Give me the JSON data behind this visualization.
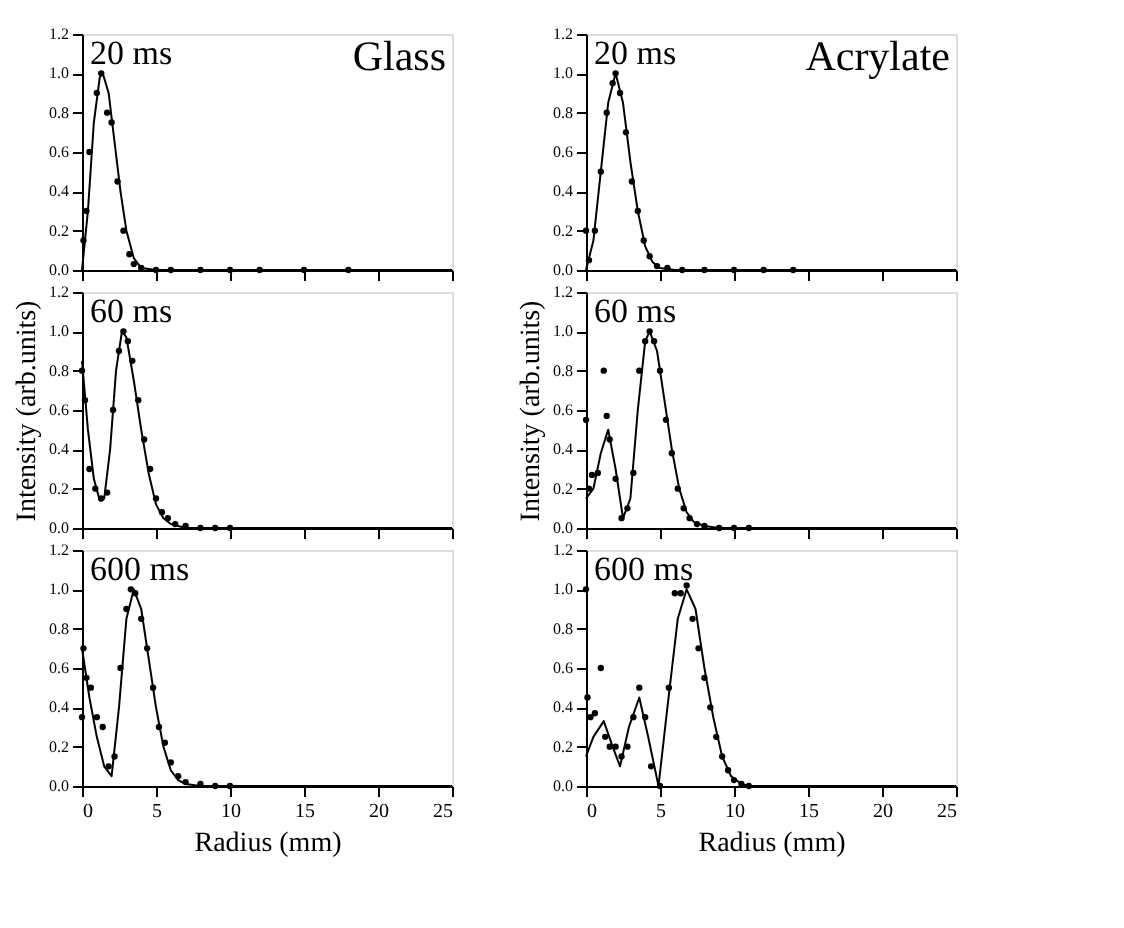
{
  "chart_data": [
    {
      "type": "line",
      "title": "20 ms",
      "annotations": [
        "Glass"
      ],
      "xlim": [
        0,
        25
      ],
      "xticks": [
        0,
        5,
        10,
        15,
        20,
        25
      ],
      "ylim": [
        0,
        1.2
      ],
      "yticks": [
        {
          "value": 0,
          "label": "0.0"
        },
        {
          "value": 0.2,
          "label": "0.2"
        },
        {
          "value": 0.4,
          "label": "0.4"
        },
        {
          "value": 0.6,
          "label": "0.6"
        },
        {
          "value": 0.8,
          "label": "0.8"
        },
        {
          "value": 1,
          "label": "1.0"
        },
        {
          "value": 1.2,
          "label": "1.2"
        }
      ],
      "tick_labels": "y",
      "grid": false,
      "series": [
        {
          "type": "line",
          "color": "#000000",
          "line_style": "solid",
          "x": [
            0,
            0.4,
            0.8,
            1.2,
            1.4,
            1.8,
            2.2,
            2.6,
            3.0,
            3.5,
            4,
            5,
            25
          ],
          "values": [
            0,
            0.3,
            0.75,
            0.98,
            1.0,
            0.9,
            0.65,
            0.4,
            0.2,
            0.06,
            0.01,
            0,
            0
          ]
        },
        {
          "type": "scatter",
          "color": "#000000",
          "marker": "circle",
          "x": [
            0.1,
            0.3,
            0.5,
            1.0,
            1.3,
            1.7,
            2.0,
            2.4,
            2.8,
            3.2,
            3.5,
            4,
            5,
            6,
            8,
            10,
            12,
            15,
            18
          ],
          "values": [
            0.15,
            0.3,
            0.6,
            0.9,
            1.0,
            0.8,
            0.75,
            0.45,
            0.2,
            0.08,
            0.03,
            0.01,
            0,
            0,
            0,
            0,
            0,
            0,
            0
          ]
        }
      ]
    },
    {
      "type": "line",
      "title": "20 ms",
      "annotations": [
        "Acrylate"
      ],
      "xlim": [
        0,
        25
      ],
      "xticks": [
        0,
        5,
        10,
        15,
        20,
        25
      ],
      "ylim": [
        0,
        1.2
      ],
      "yticks": [
        {
          "value": 0,
          "label": "0.0"
        },
        {
          "value": 0.2,
          "label": "0.2"
        },
        {
          "value": 0.4,
          "label": "0.4"
        },
        {
          "value": 0.6,
          "label": "0.6"
        },
        {
          "value": 0.8,
          "label": "0.8"
        },
        {
          "value": 1,
          "label": "1.0"
        },
        {
          "value": 1.2,
          "label": "1.2"
        }
      ],
      "tick_labels": "y",
      "grid": false,
      "series": [
        {
          "type": "line",
          "color": "#000000",
          "line_style": "solid",
          "x": [
            0,
            0.5,
            1,
            1.5,
            2,
            2.5,
            3,
            3.5,
            4,
            4.5,
            5,
            6,
            25
          ],
          "values": [
            0,
            0.15,
            0.5,
            0.85,
            1.0,
            0.85,
            0.55,
            0.3,
            0.12,
            0.04,
            0.01,
            0,
            0
          ]
        },
        {
          "type": "scatter",
          "color": "#000000",
          "marker": "circle",
          "x": [
            0,
            0.2,
            0.6,
            1.0,
            1.4,
            1.8,
            2.0,
            2.3,
            2.7,
            3.1,
            3.5,
            3.9,
            4.3,
            4.8,
            5.5,
            6.5,
            8,
            10,
            12,
            14
          ],
          "values": [
            0.2,
            0.05,
            0.2,
            0.5,
            0.8,
            0.95,
            1.0,
            0.9,
            0.7,
            0.45,
            0.3,
            0.15,
            0.07,
            0.02,
            0.01,
            0,
            0,
            0,
            0,
            0
          ]
        }
      ]
    },
    {
      "type": "line",
      "title": "60 ms",
      "ylabel": "Intensity (arb.units)",
      "xlim": [
        0,
        25
      ],
      "xticks": [
        0,
        5,
        10,
        15,
        20,
        25
      ],
      "ylim": [
        0,
        1.2
      ],
      "yticks": [
        {
          "value": 0,
          "label": "0.0"
        },
        {
          "value": 0.2,
          "label": "0.2"
        },
        {
          "value": 0.4,
          "label": "0.4"
        },
        {
          "value": 0.6,
          "label": "0.6"
        },
        {
          "value": 0.8,
          "label": "0.8"
        },
        {
          "value": 1,
          "label": "1.0"
        },
        {
          "value": 1.2,
          "label": "1.2"
        }
      ],
      "tick_labels": "y",
      "grid": false,
      "series": [
        {
          "type": "line",
          "color": "#000000",
          "line_style": "solid",
          "x": [
            0,
            0.4,
            0.8,
            1.2,
            1.5,
            1.9,
            2.3,
            2.7,
            3.0,
            3.5,
            4.0,
            4.5,
            5.0,
            5.5,
            6,
            7,
            25
          ],
          "values": [
            0.85,
            0.5,
            0.25,
            0.14,
            0.15,
            0.4,
            0.8,
            1.0,
            0.97,
            0.75,
            0.5,
            0.28,
            0.12,
            0.05,
            0.02,
            0,
            0
          ]
        },
        {
          "type": "scatter",
          "color": "#000000",
          "marker": "circle",
          "x": [
            0,
            0.2,
            0.5,
            0.9,
            1.3,
            1.7,
            2.1,
            2.5,
            2.8,
            3.1,
            3.4,
            3.8,
            4.2,
            4.6,
            5.0,
            5.4,
            5.8,
            6.3,
            7,
            8,
            9,
            10
          ],
          "values": [
            0.8,
            0.65,
            0.3,
            0.2,
            0.15,
            0.18,
            0.6,
            0.9,
            1.0,
            0.95,
            0.85,
            0.65,
            0.45,
            0.3,
            0.15,
            0.08,
            0.05,
            0.02,
            0.01,
            0,
            0,
            0
          ]
        }
      ]
    },
    {
      "type": "line",
      "title": "60 ms",
      "ylabel": "Intensity (arb.units)",
      "xlim": [
        0,
        25
      ],
      "xticks": [
        0,
        5,
        10,
        15,
        20,
        25
      ],
      "ylim": [
        0,
        1.2
      ],
      "yticks": [
        {
          "value": 0,
          "label": "0.0"
        },
        {
          "value": 0.2,
          "label": "0.2"
        },
        {
          "value": 0.4,
          "label": "0.4"
        },
        {
          "value": 0.6,
          "label": "0.6"
        },
        {
          "value": 0.8,
          "label": "0.8"
        },
        {
          "value": 1,
          "label": "1.0"
        },
        {
          "value": 1.2,
          "label": "1.2"
        }
      ],
      "tick_labels": "y",
      "grid": false,
      "series": [
        {
          "type": "line",
          "color": "#000000",
          "line_style": "solid",
          "x": [
            0,
            0.5,
            1,
            1.5,
            2,
            2.5,
            3,
            3.5,
            4,
            4.3,
            4.8,
            5.3,
            5.8,
            6.3,
            6.8,
            7.3,
            8,
            9,
            25
          ],
          "values": [
            0.15,
            0.2,
            0.38,
            0.5,
            0.3,
            0.05,
            0.15,
            0.6,
            0.95,
            1.0,
            0.9,
            0.65,
            0.4,
            0.2,
            0.08,
            0.03,
            0.01,
            0,
            0
          ]
        },
        {
          "type": "scatter",
          "color": "#000000",
          "marker": "circle",
          "x": [
            0,
            0.2,
            0.4,
            0.8,
            1.2,
            1.4,
            1.6,
            2.0,
            2.4,
            2.8,
            3.2,
            3.6,
            4.0,
            4.3,
            4.6,
            5.0,
            5.4,
            5.8,
            6.2,
            6.6,
            7.0,
            7.5,
            8,
            9,
            10,
            11
          ],
          "values": [
            0.55,
            0.2,
            0.27,
            0.28,
            0.8,
            0.57,
            0.45,
            0.25,
            0.05,
            0.1,
            0.28,
            0.8,
            0.95,
            1.0,
            0.95,
            0.8,
            0.55,
            0.38,
            0.2,
            0.1,
            0.05,
            0.02,
            0.01,
            0,
            0,
            0
          ]
        }
      ]
    },
    {
      "type": "line",
      "title": "600 ms",
      "xlabel": "Radius (mm)",
      "xlim": [
        0,
        25
      ],
      "xticks": [
        0,
        5,
        10,
        15,
        20,
        25
      ],
      "ylim": [
        0,
        1.2
      ],
      "yticks": [
        {
          "value": 0,
          "label": "0.0"
        },
        {
          "value": 0.2,
          "label": "0.2"
        },
        {
          "value": 0.4,
          "label": "0.4"
        },
        {
          "value": 0.6,
          "label": "0.6"
        },
        {
          "value": 0.8,
          "label": "0.8"
        },
        {
          "value": 1,
          "label": "1.0"
        },
        {
          "value": 1.2,
          "label": "1.2"
        }
      ],
      "grid": false,
      "series": [
        {
          "type": "line",
          "color": "#000000",
          "line_style": "solid",
          "x": [
            0,
            0.5,
            1,
            1.5,
            2,
            2.5,
            3,
            3.5,
            4,
            4.5,
            5,
            5.5,
            6,
            6.5,
            7,
            8,
            25
          ],
          "values": [
            0.7,
            0.45,
            0.25,
            0.1,
            0.05,
            0.4,
            0.85,
            1.0,
            0.9,
            0.65,
            0.4,
            0.2,
            0.08,
            0.03,
            0.01,
            0,
            0
          ]
        },
        {
          "type": "scatter",
          "color": "#000000",
          "marker": "circle",
          "x": [
            0,
            0.1,
            0.3,
            0.6,
            1.0,
            1.4,
            1.8,
            2.2,
            2.6,
            3.0,
            3.3,
            3.6,
            4.0,
            4.4,
            4.8,
            5.2,
            5.6,
            6.0,
            6.5,
            7,
            8,
            9,
            10
          ],
          "values": [
            0.35,
            0.7,
            0.55,
            0.5,
            0.35,
            0.3,
            0.1,
            0.15,
            0.6,
            0.9,
            1.0,
            0.98,
            0.85,
            0.7,
            0.5,
            0.3,
            0.22,
            0.12,
            0.05,
            0.02,
            0.01,
            0,
            0
          ]
        }
      ]
    },
    {
      "type": "line",
      "title": "600 ms",
      "xlabel": "Radius (mm)",
      "xlim": [
        0,
        25
      ],
      "xticks": [
        0,
        5,
        10,
        15,
        20,
        25
      ],
      "ylim": [
        0,
        1.2
      ],
      "yticks": [
        {
          "value": 0,
          "label": "0.0"
        },
        {
          "value": 0.2,
          "label": "0.2"
        },
        {
          "value": 0.4,
          "label": "0.4"
        },
        {
          "value": 0.6,
          "label": "0.6"
        },
        {
          "value": 0.8,
          "label": "0.8"
        },
        {
          "value": 1,
          "label": "1.0"
        },
        {
          "value": 1.2,
          "label": "1.2"
        }
      ],
      "grid": false,
      "series": [
        {
          "type": "line",
          "color": "#000000",
          "line_style": "solid",
          "x": [
            0,
            0.5,
            1.2,
            1.8,
            2.3,
            2.9,
            3.6,
            4.2,
            4.9,
            5.5,
            6.2,
            6.8,
            7.4,
            8,
            8.6,
            9.2,
            9.8,
            10.5,
            11,
            25
          ],
          "values": [
            0.15,
            0.25,
            0.33,
            0.2,
            0.1,
            0.3,
            0.45,
            0.25,
            0.0,
            0.4,
            0.85,
            1.0,
            0.9,
            0.6,
            0.35,
            0.15,
            0.05,
            0.01,
            0,
            0
          ]
        },
        {
          "type": "scatter",
          "color": "#000000",
          "marker": "circle",
          "x": [
            0,
            0.1,
            0.3,
            0.6,
            1.0,
            1.3,
            1.6,
            2.0,
            2.4,
            2.8,
            3.2,
            3.6,
            4.0,
            4.4,
            5.0,
            5.6,
            6.0,
            6.4,
            6.8,
            7.2,
            7.6,
            8.0,
            8.4,
            8.8,
            9.2,
            9.6,
            10,
            10.5,
            11
          ],
          "values": [
            1.0,
            0.45,
            0.35,
            0.37,
            0.6,
            0.25,
            0.2,
            0.2,
            0.15,
            0.2,
            0.35,
            0.5,
            0.35,
            0.1,
            0.0,
            0.5,
            0.98,
            0.98,
            1.02,
            0.85,
            0.7,
            0.55,
            0.4,
            0.25,
            0.15,
            0.08,
            0.03,
            0.01,
            0
          ]
        }
      ]
    }
  ]
}
